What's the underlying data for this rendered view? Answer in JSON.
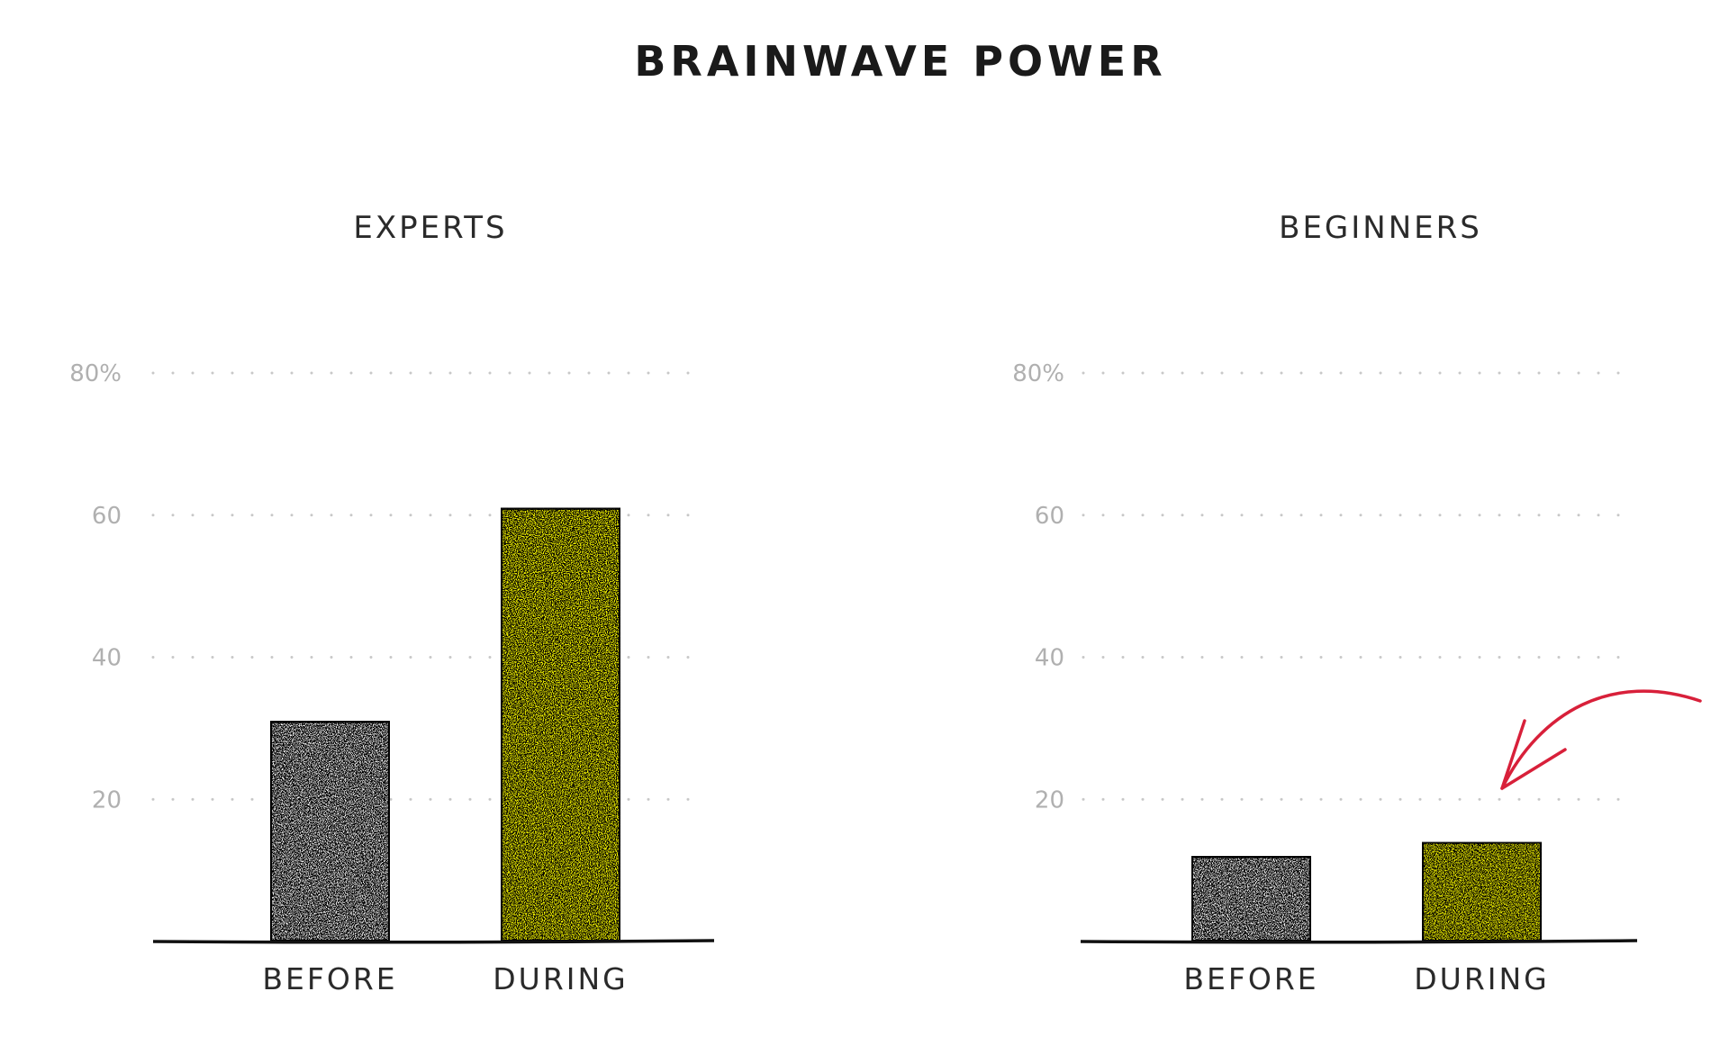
{
  "title": "BRAINWAVE POWER",
  "colors": {
    "during_fill": "#f7f700",
    "before_fill": "#ffffff",
    "outline": "#111111",
    "grid": "#c8c8c8",
    "tick_label": "#b0b0b0",
    "arrow": "#d8203a"
  },
  "chart_data": [
    {
      "type": "bar",
      "title": "EXPERTS",
      "categories": [
        "BEFORE",
        "DURING"
      ],
      "values": [
        31,
        61
      ],
      "ylim": [
        0,
        80
      ],
      "yticks": [
        20,
        40,
        60,
        80
      ],
      "ytick_labels": [
        "20",
        "40",
        "60",
        "80%"
      ],
      "grid": true,
      "annotation": ""
    },
    {
      "type": "bar",
      "title": "BEGINNERS",
      "categories": [
        "BEFORE",
        "DURING"
      ],
      "values": [
        12,
        14
      ],
      "ylim": [
        0,
        80
      ],
      "yticks": [
        20,
        40,
        60,
        80
      ],
      "ytick_labels": [
        "20",
        "40",
        "60",
        "80%"
      ],
      "grid": true,
      "annotation": "arrow pointing to DURING bar"
    }
  ]
}
